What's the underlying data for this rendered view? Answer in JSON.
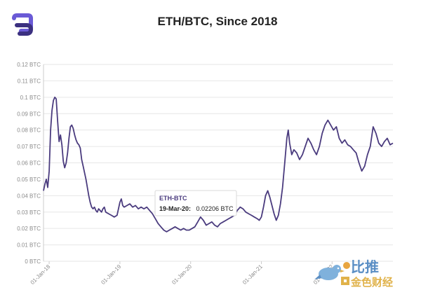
{
  "chart_data": {
    "type": "line",
    "title": "ETH/BTC, Since 2018",
    "xlabel": "",
    "ylabel": "",
    "ylim": [
      0,
      0.12
    ],
    "y_ticks": [
      "0 BTC",
      "0.01 BTC",
      "0.02 BTC",
      "0.03 BTC",
      "0.04 BTC",
      "0.05 BTC",
      "0.06 BTC",
      "0.07 BTC",
      "0.08 BTC",
      "0.09 BTC",
      "0.1 BTC",
      "0.11 BTC",
      "0.12 BTC"
    ],
    "x_range": [
      2017.92,
      2022.86
    ],
    "x_ticks": [
      {
        "label": "01-Jan-18",
        "x": 2018.0
      },
      {
        "label": "01-Jan-19",
        "x": 2019.0
      },
      {
        "label": "01-Jan-20",
        "x": 2020.0
      },
      {
        "label": "01-Jan-21",
        "x": 2021.0
      },
      {
        "label": "01-Jan-22",
        "x": 2022.0
      }
    ],
    "series": [
      {
        "name": "ETH-BTC",
        "color": "#4a3b7e",
        "points": [
          [
            2017.92,
            0.043
          ],
          [
            2017.94,
            0.047
          ],
          [
            2017.96,
            0.05
          ],
          [
            2017.98,
            0.045
          ],
          [
            2018.0,
            0.055
          ],
          [
            2018.02,
            0.08
          ],
          [
            2018.04,
            0.092
          ],
          [
            2018.06,
            0.098
          ],
          [
            2018.08,
            0.1
          ],
          [
            2018.1,
            0.099
          ],
          [
            2018.12,
            0.085
          ],
          [
            2018.14,
            0.073
          ],
          [
            2018.16,
            0.077
          ],
          [
            2018.18,
            0.071
          ],
          [
            2018.2,
            0.061
          ],
          [
            2018.22,
            0.057
          ],
          [
            2018.24,
            0.06
          ],
          [
            2018.26,
            0.066
          ],
          [
            2018.28,
            0.075
          ],
          [
            2018.3,
            0.082
          ],
          [
            2018.32,
            0.083
          ],
          [
            2018.34,
            0.081
          ],
          [
            2018.36,
            0.077
          ],
          [
            2018.38,
            0.074
          ],
          [
            2018.4,
            0.072
          ],
          [
            2018.42,
            0.071
          ],
          [
            2018.44,
            0.069
          ],
          [
            2018.46,
            0.062
          ],
          [
            2018.48,
            0.058
          ],
          [
            2018.5,
            0.054
          ],
          [
            2018.52,
            0.05
          ],
          [
            2018.54,
            0.045
          ],
          [
            2018.56,
            0.04
          ],
          [
            2018.58,
            0.036
          ],
          [
            2018.6,
            0.033
          ],
          [
            2018.62,
            0.032
          ],
          [
            2018.64,
            0.033
          ],
          [
            2018.66,
            0.031
          ],
          [
            2018.68,
            0.03
          ],
          [
            2018.7,
            0.032
          ],
          [
            2018.72,
            0.031
          ],
          [
            2018.74,
            0.03
          ],
          [
            2018.76,
            0.032
          ],
          [
            2018.78,
            0.033
          ],
          [
            2018.8,
            0.03
          ],
          [
            2018.84,
            0.029
          ],
          [
            2018.88,
            0.028
          ],
          [
            2018.92,
            0.027
          ],
          [
            2018.96,
            0.028
          ],
          [
            2019.0,
            0.036
          ],
          [
            2019.02,
            0.038
          ],
          [
            2019.04,
            0.034
          ],
          [
            2019.06,
            0.033
          ],
          [
            2019.1,
            0.034
          ],
          [
            2019.14,
            0.035
          ],
          [
            2019.18,
            0.033
          ],
          [
            2019.22,
            0.034
          ],
          [
            2019.26,
            0.032
          ],
          [
            2019.3,
            0.033
          ],
          [
            2019.34,
            0.032
          ],
          [
            2019.38,
            0.033
          ],
          [
            2019.42,
            0.031
          ],
          [
            2019.46,
            0.029
          ],
          [
            2019.5,
            0.026
          ],
          [
            2019.54,
            0.023
          ],
          [
            2019.58,
            0.021
          ],
          [
            2019.62,
            0.019
          ],
          [
            2019.66,
            0.018
          ],
          [
            2019.7,
            0.019
          ],
          [
            2019.74,
            0.02
          ],
          [
            2019.78,
            0.021
          ],
          [
            2019.82,
            0.02
          ],
          [
            2019.86,
            0.019
          ],
          [
            2019.9,
            0.02
          ],
          [
            2019.94,
            0.019
          ],
          [
            2019.98,
            0.019
          ],
          [
            2020.02,
            0.02
          ],
          [
            2020.06,
            0.021
          ],
          [
            2020.1,
            0.024
          ],
          [
            2020.14,
            0.027
          ],
          [
            2020.18,
            0.025
          ],
          [
            2020.22,
            0.022
          ],
          [
            2020.26,
            0.023
          ],
          [
            2020.3,
            0.024
          ],
          [
            2020.34,
            0.022
          ],
          [
            2020.38,
            0.021
          ],
          [
            2020.42,
            0.023
          ],
          [
            2020.46,
            0.024
          ],
          [
            2020.5,
            0.025
          ],
          [
            2020.54,
            0.026
          ],
          [
            2020.58,
            0.027
          ],
          [
            2020.62,
            0.028
          ],
          [
            2020.66,
            0.031
          ],
          [
            2020.7,
            0.033
          ],
          [
            2020.74,
            0.032
          ],
          [
            2020.78,
            0.03
          ],
          [
            2020.82,
            0.029
          ],
          [
            2020.86,
            0.028
          ],
          [
            2020.9,
            0.027
          ],
          [
            2020.94,
            0.026
          ],
          [
            2020.97,
            0.025
          ],
          [
            2021.0,
            0.027
          ],
          [
            2021.03,
            0.033
          ],
          [
            2021.06,
            0.04
          ],
          [
            2021.09,
            0.043
          ],
          [
            2021.12,
            0.039
          ],
          [
            2021.15,
            0.034
          ],
          [
            2021.18,
            0.029
          ],
          [
            2021.21,
            0.025
          ],
          [
            2021.24,
            0.028
          ],
          [
            2021.27,
            0.035
          ],
          [
            2021.3,
            0.045
          ],
          [
            2021.33,
            0.06
          ],
          [
            2021.36,
            0.075
          ],
          [
            2021.38,
            0.08
          ],
          [
            2021.4,
            0.072
          ],
          [
            2021.43,
            0.065
          ],
          [
            2021.46,
            0.068
          ],
          [
            2021.5,
            0.066
          ],
          [
            2021.54,
            0.062
          ],
          [
            2021.58,
            0.065
          ],
          [
            2021.62,
            0.07
          ],
          [
            2021.66,
            0.075
          ],
          [
            2021.7,
            0.072
          ],
          [
            2021.74,
            0.068
          ],
          [
            2021.78,
            0.065
          ],
          [
            2021.82,
            0.07
          ],
          [
            2021.86,
            0.078
          ],
          [
            2021.9,
            0.083
          ],
          [
            2021.94,
            0.086
          ],
          [
            2021.98,
            0.083
          ],
          [
            2022.02,
            0.08
          ],
          [
            2022.06,
            0.082
          ],
          [
            2022.1,
            0.075
          ],
          [
            2022.14,
            0.072
          ],
          [
            2022.18,
            0.074
          ],
          [
            2022.22,
            0.071
          ],
          [
            2022.26,
            0.07
          ],
          [
            2022.3,
            0.068
          ],
          [
            2022.34,
            0.066
          ],
          [
            2022.38,
            0.06
          ],
          [
            2022.42,
            0.055
          ],
          [
            2022.46,
            0.058
          ],
          [
            2022.5,
            0.065
          ],
          [
            2022.54,
            0.07
          ],
          [
            2022.58,
            0.082
          ],
          [
            2022.62,
            0.078
          ],
          [
            2022.66,
            0.072
          ],
          [
            2022.7,
            0.07
          ],
          [
            2022.74,
            0.073
          ],
          [
            2022.78,
            0.075
          ],
          [
            2022.82,
            0.071
          ],
          [
            2022.86,
            0.072
          ]
        ]
      }
    ],
    "tooltip": {
      "series": "ETH-BTC",
      "date": "19-Mar-20:",
      "value": "0.02206 BTC",
      "x": 2020.21,
      "y": 0.02206
    }
  },
  "watermark": {
    "line1": "比推",
    "line2": "金色财经"
  },
  "colors": {
    "line": "#4a3b7e",
    "logo_top": "#6a5ad6",
    "logo_bottom": "#3b3080"
  }
}
